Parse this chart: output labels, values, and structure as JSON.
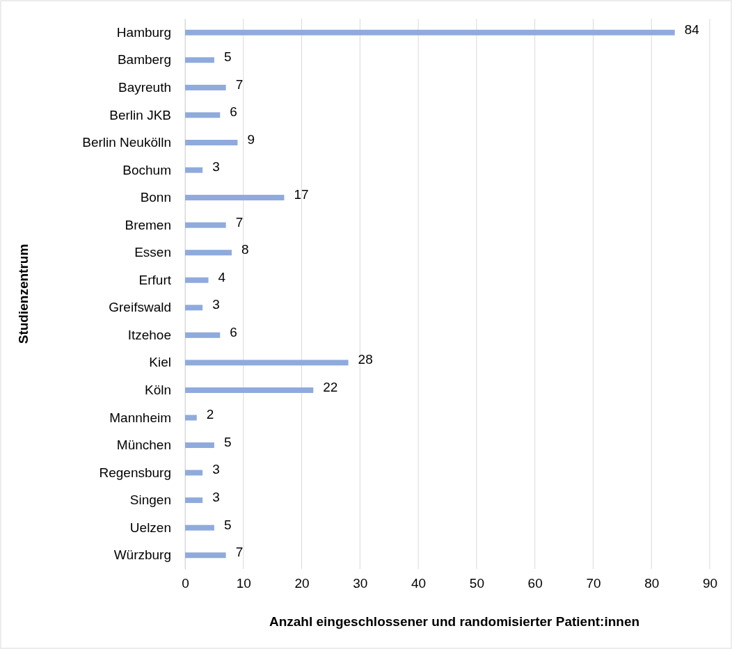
{
  "chart_data": {
    "type": "bar",
    "orientation": "horizontal",
    "categories": [
      "Hamburg",
      "Bamberg",
      "Bayreuth",
      "Berlin JKB",
      "Berlin Neukölln",
      "Bochum",
      "Bonn",
      "Bremen",
      "Essen",
      "Erfurt",
      "Greifswald",
      "Itzehoe",
      "Kiel",
      "Köln",
      "Mannheim",
      "München",
      "Regensburg",
      "Singen",
      "Uelzen",
      "Würzburg"
    ],
    "values": [
      84,
      5,
      7,
      6,
      9,
      3,
      17,
      7,
      8,
      4,
      3,
      6,
      28,
      22,
      2,
      5,
      3,
      3,
      5,
      7
    ],
    "color": "#8faadc",
    "xlim": [
      0,
      90
    ],
    "xticks": [
      0,
      10,
      20,
      30,
      40,
      50,
      60,
      70,
      80,
      90
    ],
    "xlabel": "Anzahl eingeschlossener und randomisierter Patient:innen",
    "ylabel": "Studienzentrum",
    "grid": "x",
    "data_labels": true
  }
}
